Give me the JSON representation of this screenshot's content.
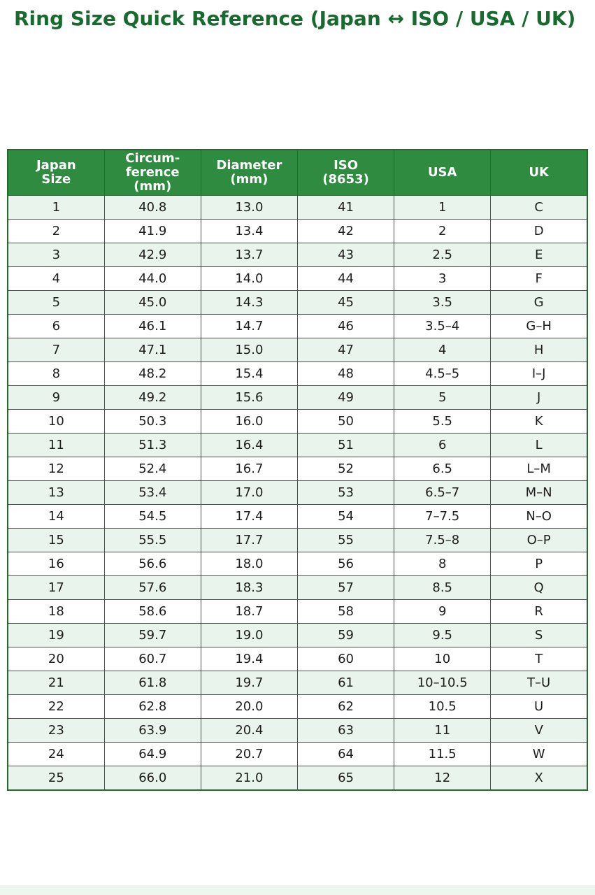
{
  "page": {
    "title": "Ring Size Quick Reference (Japan ↔ ISO / USA / UK)"
  },
  "colors": {
    "title_text": "#176b2e",
    "header_bg": "#2e8b40",
    "header_text": "#ffffff",
    "row_alt_bg": "#e9f5ec",
    "row_bg": "#ffffff",
    "grid_border": "#26692f"
  },
  "table": {
    "headers": [
      "Japan\nSize",
      "Circum-\nference\n(mm)",
      "Diameter\n(mm)",
      "ISO\n(8653)",
      "USA",
      "UK"
    ],
    "rows": [
      [
        "1",
        "40.8",
        "13.0",
        "41",
        "1",
        "C"
      ],
      [
        "2",
        "41.9",
        "13.4",
        "42",
        "2",
        "D"
      ],
      [
        "3",
        "42.9",
        "13.7",
        "43",
        "2.5",
        "E"
      ],
      [
        "4",
        "44.0",
        "14.0",
        "44",
        "3",
        "F"
      ],
      [
        "5",
        "45.0",
        "14.3",
        "45",
        "3.5",
        "G"
      ],
      [
        "6",
        "46.1",
        "14.7",
        "46",
        "3.5–4",
        "G–H"
      ],
      [
        "7",
        "47.1",
        "15.0",
        "47",
        "4",
        "H"
      ],
      [
        "8",
        "48.2",
        "15.4",
        "48",
        "4.5–5",
        "I–J"
      ],
      [
        "9",
        "49.2",
        "15.6",
        "49",
        "5",
        "J"
      ],
      [
        "10",
        "50.3",
        "16.0",
        "50",
        "5.5",
        "K"
      ],
      [
        "11",
        "51.3",
        "16.4",
        "51",
        "6",
        "L"
      ],
      [
        "12",
        "52.4",
        "16.7",
        "52",
        "6.5",
        "L–M"
      ],
      [
        "13",
        "53.4",
        "17.0",
        "53",
        "6.5–7",
        "M–N"
      ],
      [
        "14",
        "54.5",
        "17.4",
        "54",
        "7–7.5",
        "N–O"
      ],
      [
        "15",
        "55.5",
        "17.7",
        "55",
        "7.5–8",
        "O–P"
      ],
      [
        "16",
        "56.6",
        "18.0",
        "56",
        "8",
        "P"
      ],
      [
        "17",
        "57.6",
        "18.3",
        "57",
        "8.5",
        "Q"
      ],
      [
        "18",
        "58.6",
        "18.7",
        "58",
        "9",
        "R"
      ],
      [
        "19",
        "59.7",
        "19.0",
        "59",
        "9.5",
        "S"
      ],
      [
        "20",
        "60.7",
        "19.4",
        "60",
        "10",
        "T"
      ],
      [
        "21",
        "61.8",
        "19.7",
        "61",
        "10–10.5",
        "T–U"
      ],
      [
        "22",
        "62.8",
        "20.0",
        "62",
        "10.5",
        "U"
      ],
      [
        "23",
        "63.9",
        "20.4",
        "63",
        "11",
        "V"
      ],
      [
        "24",
        "64.9",
        "20.7",
        "64",
        "11.5",
        "W"
      ],
      [
        "25",
        "66.0",
        "21.0",
        "65",
        "12",
        "X"
      ]
    ]
  }
}
